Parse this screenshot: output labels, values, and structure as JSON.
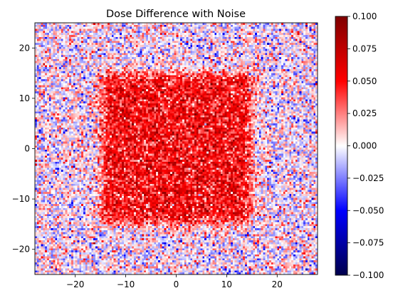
{
  "chart_data": {
    "type": "heatmap",
    "title": "Dose Difference with Noise",
    "xlabel": "",
    "ylabel": "",
    "xlim": [
      -28,
      28
    ],
    "ylim": [
      -25,
      25
    ],
    "x_ticks": [
      -20,
      -10,
      0,
      10,
      20
    ],
    "x_tick_labels": [
      "−20",
      "−10",
      "0",
      "10",
      "20"
    ],
    "y_ticks": [
      -20,
      -10,
      0,
      10,
      20
    ],
    "y_tick_labels": [
      "−20",
      "−10",
      "0",
      "10",
      "20"
    ],
    "colormap": "seismic",
    "vmin": -0.1,
    "vmax": 0.1,
    "colorbar_ticks": [
      -0.1,
      -0.075,
      -0.05,
      -0.025,
      0.0,
      0.025,
      0.05,
      0.075,
      0.1
    ],
    "colorbar_tick_labels": [
      "−0.100",
      "−0.075",
      "−0.050",
      "−0.025",
      "0.000",
      "0.025",
      "0.050",
      "0.075",
      "0.100"
    ],
    "grid": false,
    "field": {
      "grid_cells": [
        140,
        125
      ],
      "background_mean": 0.0,
      "background_noise_sd": 0.02,
      "region": {
        "shape": "square",
        "x_range": [
          -15,
          15
        ],
        "y_range": [
          -15,
          15
        ],
        "mean": 0.05,
        "noise_sd": 0.02,
        "edge_blur": 0.6
      }
    }
  }
}
